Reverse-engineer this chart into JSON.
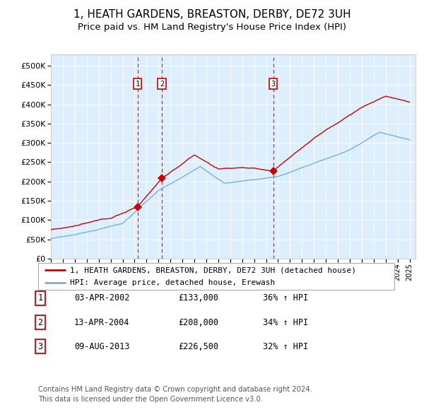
{
  "title": "1, HEATH GARDENS, BREASTON, DERBY, DE72 3UH",
  "subtitle": "Price paid vs. HM Land Registry's House Price Index (HPI)",
  "title_fontsize": 11,
  "subtitle_fontsize": 9.5,
  "background_color": "#ffffff",
  "plot_bg_color": "#ddeeff",
  "grid_color": "#ffffff",
  "sale_dates": [
    2002.25,
    2004.28,
    2013.6
  ],
  "sale_prices": [
    133000,
    208000,
    226500
  ],
  "sale_labels": [
    "1",
    "2",
    "3"
  ],
  "legend_line1": "1, HEATH GARDENS, BREASTON, DERBY, DE72 3UH (detached house)",
  "legend_line2": "HPI: Average price, detached house, Erewash",
  "table_rows": [
    [
      "1",
      "03-APR-2002",
      "£133,000",
      "36% ↑ HPI"
    ],
    [
      "2",
      "13-APR-2004",
      "£208,000",
      "34% ↑ HPI"
    ],
    [
      "3",
      "09-AUG-2013",
      "£226,500",
      "32% ↑ HPI"
    ]
  ],
  "footer": "Contains HM Land Registry data © Crown copyright and database right 2024.\nThis data is licensed under the Open Government Licence v3.0.",
  "xmin": 1995,
  "xmax": 2025.5,
  "ymin": 0,
  "ymax": 530000,
  "red_line_color": "#cc0000",
  "blue_line_color": "#7ab0d4",
  "vline_color": "#dd0000",
  "dot_color": "#cc0000",
  "legend_border_color": "#aaaaaa",
  "table_number_border_color": "#cc0000"
}
